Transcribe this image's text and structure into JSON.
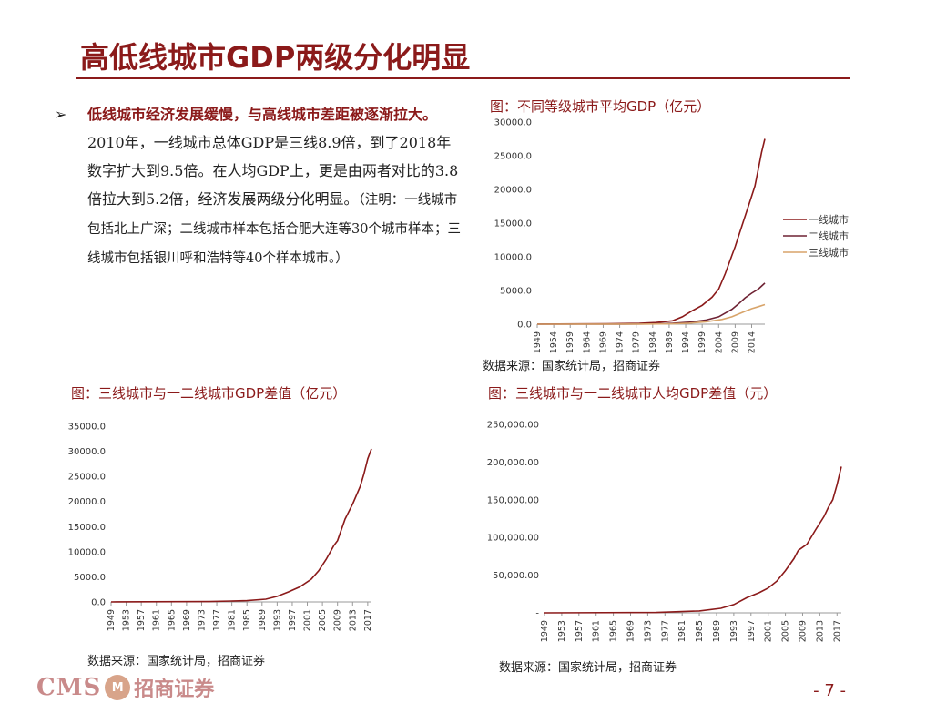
{
  "title": "高低线城市GDP两级分化明显",
  "bullet": {
    "marker": "➢",
    "bold": "低线城市经济发展缓慢，与高线城市差距被逐渐拉大。",
    "text": "2010年，一线城市总体GDP是三线8.9倍，到了2018年数字扩大到9.5倍。在人均GDP上，更是由两者对比的3.8倍拉大到5.2倍，经济发展两级分化明显。",
    "note": "（注明：一线城市包括北上广深；二线城市样本包括合肥大连等30个城市样本；三线城市包括银川呼和浩特等40个样本城市。）"
  },
  "footer": {
    "logo_text": "CMS",
    "logo_badge": "M",
    "logo_cn": "招商证券",
    "page": "- 7 -"
  },
  "colors": {
    "tier1": "#8b1a1a",
    "tier2": "#6e2233",
    "tier3": "#d8a46a",
    "gap": "#8b1a1a",
    "axis": "#999999"
  },
  "chart_data": [
    {
      "id": "avg-gdp",
      "type": "line",
      "title": "图：不同等级城市平均GDP（亿元）",
      "source": "数据来源：国家统计局，招商证券",
      "x_ticks": [
        "1949",
        "1954",
        "1959",
        "1964",
        "1969",
        "1974",
        "1979",
        "1984",
        "1989",
        "1994",
        "1999",
        "2004",
        "2009",
        "2014"
      ],
      "y_ticks": [
        "30000.0",
        "25000.0",
        "20000.0",
        "15000.0",
        "10000.0",
        "5000.0",
        "0.0"
      ],
      "ylim": [
        0,
        30000
      ],
      "xlim": [
        1949,
        2018
      ],
      "legend": [
        "一线城市",
        "二线城市",
        "三线城市"
      ],
      "legend_position": "right",
      "series": [
        {
          "name": "一线城市",
          "points": [
            [
              1949,
              10
            ],
            [
              1970,
              50
            ],
            [
              1980,
              120
            ],
            [
              1985,
              250
            ],
            [
              1990,
              500
            ],
            [
              1993,
              1100
            ],
            [
              1996,
              2000
            ],
            [
              1999,
              2800
            ],
            [
              2002,
              4000
            ],
            [
              2004,
              5200
            ],
            [
              2006,
              7500
            ],
            [
              2008,
              10200
            ],
            [
              2009,
              11500
            ],
            [
              2011,
              14500
            ],
            [
              2013,
              17500
            ],
            [
              2015,
              20500
            ],
            [
              2016,
              23000
            ],
            [
              2017,
              25500
            ],
            [
              2018,
              27500
            ]
          ]
        },
        {
          "name": "二线城市",
          "points": [
            [
              1949,
              5
            ],
            [
              1975,
              20
            ],
            [
              1985,
              60
            ],
            [
              1990,
              120
            ],
            [
              1995,
              300
            ],
            [
              2000,
              600
            ],
            [
              2004,
              1100
            ],
            [
              2008,
              2200
            ],
            [
              2010,
              3000
            ],
            [
              2012,
              3900
            ],
            [
              2014,
              4600
            ],
            [
              2016,
              5200
            ],
            [
              2018,
              6100
            ]
          ]
        },
        {
          "name": "三线城市",
          "points": [
            [
              1949,
              3
            ],
            [
              1980,
              15
            ],
            [
              1990,
              60
            ],
            [
              1995,
              150
            ],
            [
              2000,
              350
            ],
            [
              2005,
              700
            ],
            [
              2008,
              1100
            ],
            [
              2010,
              1500
            ],
            [
              2012,
              1900
            ],
            [
              2014,
              2300
            ],
            [
              2016,
              2600
            ],
            [
              2018,
              2900
            ]
          ]
        }
      ]
    },
    {
      "id": "gdp-gap",
      "type": "line",
      "title": "图：三线城市与一二线城市GDP差值（亿元）",
      "source": "数据来源：国家统计局，招商证券",
      "x_ticks": [
        "1949",
        "1953",
        "1957",
        "1961",
        "1965",
        "1969",
        "1973",
        "1977",
        "1981",
        "1985",
        "1989",
        "1993",
        "1997",
        "2001",
        "2005",
        "2009",
        "2013",
        "2017"
      ],
      "y_ticks": [
        "35000.0",
        "30000.0",
        "25000.0",
        "20000.0",
        "15000.0",
        "10000.0",
        "5000.0",
        "0.0"
      ],
      "ylim": [
        0,
        35000
      ],
      "xlim": [
        1949,
        2018
      ],
      "series": [
        {
          "name": "",
          "points": [
            [
              1949,
              0
            ],
            [
              1975,
              80
            ],
            [
              1985,
              250
            ],
            [
              1990,
              550
            ],
            [
              1993,
              1100
            ],
            [
              1996,
              2000
            ],
            [
              1999,
              3000
            ],
            [
              2002,
              4500
            ],
            [
              2004,
              6200
            ],
            [
              2006,
              8500
            ],
            [
              2008,
              11200
            ],
            [
              2009,
              12200
            ],
            [
              2011,
              16500
            ],
            [
              2013,
              19500
            ],
            [
              2015,
              23000
            ],
            [
              2016,
              25500
            ],
            [
              2017,
              28500
            ],
            [
              2018,
              30500
            ]
          ]
        }
      ]
    },
    {
      "id": "gdp-per-capita-gap",
      "type": "line",
      "title": "图：三线城市与一二线城市人均GDP差值（元）",
      "source": "数据来源：国家统计局，招商证券",
      "x_ticks": [
        "1949",
        "1953",
        "1957",
        "1961",
        "1965",
        "1969",
        "1973",
        "1977",
        "1981",
        "1985",
        "1989",
        "1993",
        "1997",
        "2001",
        "2005",
        "2009",
        "2013",
        "2017"
      ],
      "y_ticks": [
        "250,000.00",
        "200,000.00",
        "150,000.00",
        "100,000.00",
        "50,000.00",
        "-"
      ],
      "ylim": [
        0,
        250000
      ],
      "xlim": [
        1949,
        2018
      ],
      "series": [
        {
          "name": "",
          "points": [
            [
              1949,
              0
            ],
            [
              1975,
              500
            ],
            [
              1985,
              2500
            ],
            [
              1990,
              6000
            ],
            [
              1993,
              11000
            ],
            [
              1996,
              20000
            ],
            [
              1999,
              27000
            ],
            [
              2001,
              33000
            ],
            [
              2003,
              42000
            ],
            [
              2005,
              56000
            ],
            [
              2007,
              72000
            ],
            [
              2008,
              83000
            ],
            [
              2010,
              91000
            ],
            [
              2012,
              110000
            ],
            [
              2014,
              128000
            ],
            [
              2015,
              140000
            ],
            [
              2016,
              150000
            ],
            [
              2017,
              170000
            ],
            [
              2018,
              194000
            ]
          ]
        }
      ]
    }
  ]
}
